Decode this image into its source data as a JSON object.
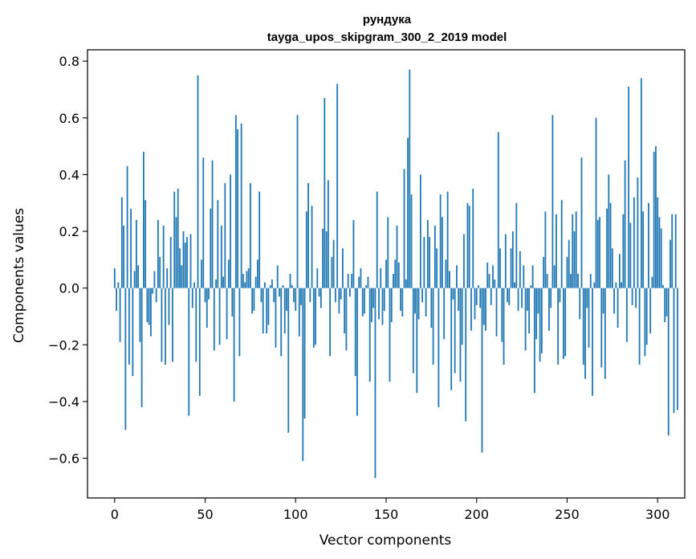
{
  "chart_data": {
    "type": "bar",
    "title_line1": "рундука",
    "title_line2": "tayga_upos_skipgram_300_2_2019 model",
    "xlabel": "Vector components",
    "ylabel": "Components values",
    "xlim": [
      -15,
      315
    ],
    "ylim": [
      -0.74,
      0.84
    ],
    "xticks": [
      0,
      50,
      100,
      150,
      200,
      250,
      300
    ],
    "xtick_labels": [
      "0",
      "50",
      "100",
      "150",
      "200",
      "250",
      "300"
    ],
    "yticks": [
      -0.6,
      -0.4,
      -0.2,
      0.0,
      0.2,
      0.4,
      0.6,
      0.8
    ],
    "ytick_labels": [
      "−0.6",
      "−0.4",
      "−0.2",
      "0.0",
      "0.2",
      "0.4",
      "0.6",
      "0.8"
    ],
    "bar_color": "#1f77b4",
    "grid": false,
    "values": [
      0.07,
      -0.08,
      0.02,
      -0.19,
      0.32,
      0.22,
      -0.5,
      0.43,
      -0.27,
      0.28,
      -0.31,
      0.06,
      0.24,
      0.08,
      -0.19,
      -0.42,
      0.48,
      0.31,
      -0.12,
      -0.13,
      -0.17,
      -0.02,
      0.06,
      -0.05,
      0.24,
      0.11,
      -0.26,
      0.22,
      -0.27,
      0.07,
      -0.13,
      0.18,
      -0.26,
      0.34,
      0.25,
      0.35,
      0.14,
      0.08,
      0.2,
      0.16,
      0.18,
      -0.45,
      0.19,
      -0.07,
      0.02,
      -0.26,
      0.75,
      -0.38,
      0.1,
      0.46,
      -0.05,
      -0.14,
      -0.04,
      0.28,
      0.45,
      -0.22,
      0.03,
      0.31,
      -0.2,
      0.22,
      0.04,
      0.37,
      -0.18,
      0.1,
      0.4,
      -0.1,
      -0.4,
      0.61,
      0.56,
      -0.24,
      0.58,
      0.05,
      0.02,
      0.06,
      0.07,
      0.37,
      -0.09,
      -0.08,
      0.04,
      0.1,
      0.34,
      -0.05,
      -0.16,
      0.02,
      -0.16,
      -0.13,
      0.01,
      0.03,
      -0.05,
      -0.21,
      0.08,
      -0.03,
      -0.24,
      0.01,
      -0.16,
      -0.08,
      -0.51,
      0.05,
      0.01,
      -0.05,
      -0.08,
      0.61,
      -0.17,
      -0.06,
      -0.61,
      -0.46,
      0.27,
      0.37,
      -0.05,
      0.29,
      -0.21,
      -0.2,
      0.07,
      -0.03,
      -0.07,
      0.21,
      0.67,
      0.2,
      0.38,
      -0.24,
      0.11,
      0.17,
      -0.05,
      0.72,
      -0.09,
      -0.04,
      0.14,
      -0.16,
      -0.22,
      0.05,
      -0.03,
      0.05,
      0.24,
      -0.31,
      -0.45,
      0.04,
      0.07,
      -0.1,
      -0.09,
      0.01,
      0.04,
      -0.33,
      -0.12,
      -0.07,
      -0.67,
      0.34,
      -0.11,
      0.07,
      -0.13,
      -0.08,
      0.1,
      0.25,
      -0.33,
      -0.12,
      0.05,
      0.1,
      0.22,
      0.09,
      -0.08,
      -0.1,
      0.42,
      0.03,
      0.53,
      0.77,
      0.33,
      -0.3,
      -0.09,
      -0.37,
      -0.11,
      0.4,
      -0.05,
      0.18,
      -0.1,
      0.24,
      0.18,
      -0.14,
      -0.27,
      0.22,
      0.14,
      -0.42,
      0.33,
      0.25,
      -0.18,
      0.1,
      0.34,
      0.06,
      -0.36,
      -0.04,
      -0.3,
      0.08,
      -0.08,
      -0.33,
      -0.2,
      0.19,
      -0.47,
      0.3,
      0.29,
      -0.15,
      0.35,
      -0.11,
      -0.06,
      0.01,
      -0.07,
      -0.58,
      -0.13,
      -0.15,
      0.09,
      0.05,
      -0.06,
      0.08,
      0.03,
      -0.17,
      0.55,
      0.14,
      -0.19,
      -0.27,
      0.19,
      -0.05,
      -0.06,
      0.14,
      0.2,
      0.02,
      0.3,
      -0.08,
      0.13,
      -0.07,
      0.08,
      -0.22,
      -0.08,
      -0.16,
      0.01,
      0.08,
      -0.37,
      -0.18,
      -0.09,
      -0.26,
      -0.23,
      0.11,
      0.27,
      0.05,
      -0.15,
      -0.07,
      0.61,
      0.08,
      0.26,
      -0.27,
      -0.05,
      0.31,
      -0.25,
      -0.24,
      0.11,
      0.17,
      0.05,
      0.26,
      0.2,
      0.27,
      0.05,
      -0.11,
      0.46,
      -0.27,
      -0.32,
      -0.07,
      -0.21,
      0.05,
      -0.38,
      0.02,
      0.6,
      0.24,
      0.25,
      -0.28,
      -0.09,
      -0.32,
      0.28,
      0.4,
      0.3,
      0.14,
      -0.09,
      0.02,
      -0.14,
      0.12,
      0.02,
      0.26,
      0.45,
      -0.19,
      0.71,
      0.23,
      -0.06,
      0.32,
      -0.07,
      0.39,
      -0.27,
      0.74,
      0.27,
      -0.24,
      -0.2,
      0.3,
      -0.16,
      0.04,
      0.48,
      0.5,
      0.32,
      0.25,
      0.21,
      0.01,
      -0.12,
      -0.1,
      -0.52,
      0.17,
      0.26,
      -0.44,
      0.26,
      -0.43
    ]
  }
}
